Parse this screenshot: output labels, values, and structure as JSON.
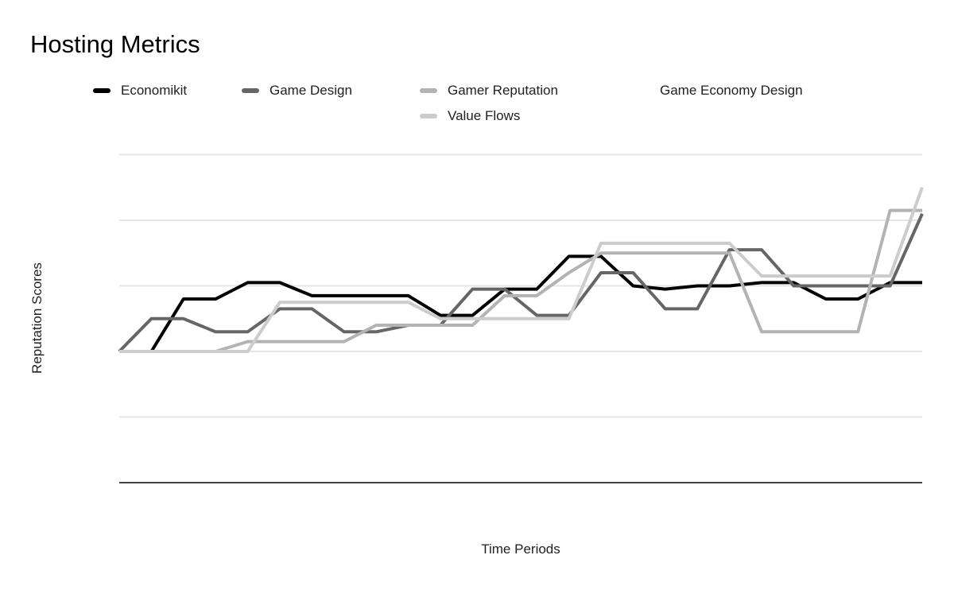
{
  "title": "Hosting Metrics",
  "legend": {
    "position": "top",
    "items": [
      {
        "label": "Economikit",
        "color": "#000000"
      },
      {
        "label": "Game Design",
        "color": "#666666"
      },
      {
        "label": "Gamer Reputation",
        "color": "#b3b3b3"
      },
      {
        "label": "Game Economy Design",
        "color": "#ffffff"
      },
      {
        "label": "Value Flows",
        "color": "#cccccc"
      }
    ]
  },
  "axes": {
    "y_title": "Reputation Scores",
    "x_title": "Time Periods",
    "tick_labels_shown": false
  },
  "chart_data": {
    "type": "line",
    "title": "Hosting Metrics",
    "xlabel": "Time Periods",
    "ylabel": "Reputation Scores",
    "x": [
      1,
      2,
      3,
      4,
      5,
      6,
      7,
      8,
      9,
      10,
      11,
      12,
      13,
      14,
      15,
      16,
      17,
      18,
      19,
      20,
      21,
      22,
      23,
      24,
      25,
      26
    ],
    "ylim": [
      0,
      50
    ],
    "gridline_values": [
      0,
      10,
      20,
      30,
      40,
      50
    ],
    "grid_color": "#e6e6e6",
    "axis_color": "#424242",
    "legend_position": "top",
    "series": [
      {
        "name": "Economikit",
        "color": "#000000",
        "values": [
          20,
          20,
          28,
          28,
          30.5,
          30.5,
          28.5,
          28.5,
          28.5,
          28.5,
          25.5,
          25.5,
          29.5,
          29.5,
          34.5,
          34.5,
          30,
          29.5,
          30,
          30,
          30.5,
          30.5,
          28,
          28,
          30.5,
          30.5
        ]
      },
      {
        "name": "Game Design",
        "color": "#666666",
        "values": [
          20,
          25,
          25,
          23,
          23,
          26.5,
          26.5,
          23,
          23,
          24,
          24,
          29.5,
          29.5,
          25.5,
          25.5,
          32,
          32,
          26.5,
          26.5,
          35.5,
          35.5,
          30,
          30,
          30,
          30,
          41
        ]
      },
      {
        "name": "Gamer Reputation",
        "color": "#b3b3b3",
        "values": [
          20,
          20,
          20,
          20,
          21.5,
          21.5,
          21.5,
          21.5,
          24,
          24,
          24,
          24,
          28.5,
          28.5,
          32,
          35,
          35,
          35,
          35,
          35,
          23,
          23,
          23,
          23,
          41.5,
          41.5
        ]
      },
      {
        "name": "Game Economy Design",
        "color": "#ffffff",
        "values": []
      },
      {
        "name": "Value Flows",
        "color": "#cccccc",
        "values": [
          20,
          20,
          20,
          20,
          20,
          27.5,
          27.5,
          27.5,
          27.5,
          27.5,
          25,
          25,
          25,
          25,
          25,
          36.5,
          36.5,
          36.5,
          36.5,
          36.5,
          31.5,
          31.5,
          31.5,
          31.5,
          31.5,
          45
        ]
      }
    ]
  }
}
